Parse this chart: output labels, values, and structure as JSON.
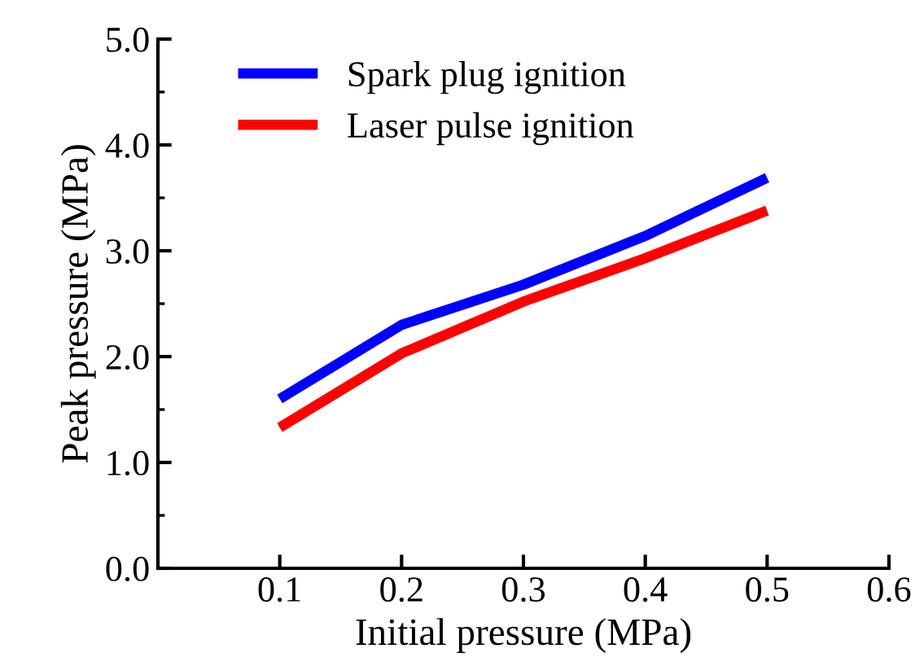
{
  "chart_data": {
    "type": "line",
    "xlabel": "Initial pressure (MPa)",
    "ylabel": "Peak pressure (MPa)",
    "x": [
      0.1,
      0.2,
      0.3,
      0.4,
      0.5
    ],
    "series": [
      {
        "name": "Spark plug ignition",
        "color": "#0000ff",
        "values": [
          1.6,
          2.3,
          2.68,
          3.14,
          3.69
        ]
      },
      {
        "name": "Laser pulse ignition",
        "color": "#ff0000",
        "values": [
          1.33,
          2.03,
          2.52,
          2.93,
          3.38
        ]
      }
    ],
    "xlim": [
      0.0,
      0.6
    ],
    "xticks": [
      0.1,
      0.2,
      0.3,
      0.4,
      0.5,
      0.6
    ],
    "ylim": [
      0.0,
      5.0
    ],
    "yticks": [
      {
        "value": 0,
        "label": "0.0"
      },
      {
        "value": 1,
        "label": "1.0"
      },
      {
        "value": 2,
        "label": "2.0"
      },
      {
        "value": 3,
        "label": "3.0"
      },
      {
        "value": 4,
        "label": "4.0"
      },
      {
        "value": 5,
        "label": "5.0"
      }
    ],
    "grid": false,
    "legend": "top left",
    "marker": "none",
    "line_style": "solid"
  }
}
